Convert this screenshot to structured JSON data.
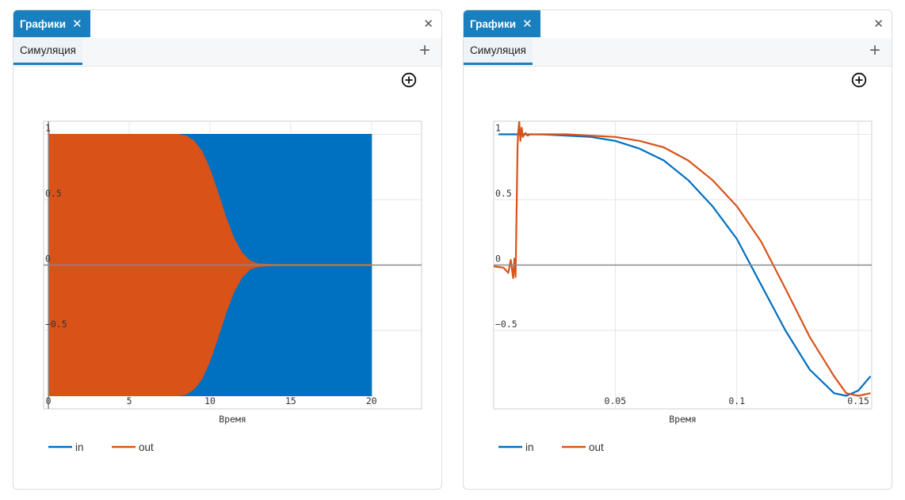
{
  "colors": {
    "accent": "#1a7fbf",
    "in": "#0070c0",
    "out": "#d95319",
    "grid": "#e6e6e6"
  },
  "panels": [
    {
      "tab_label": "Графики",
      "tab_close_icon": "close-icon",
      "panel_close_icon": "close-icon",
      "subtab_label": "Симуляция",
      "add_icon": "plus-icon",
      "zoom_icon": "circle-plus-icon"
    },
    {
      "tab_label": "Графики",
      "tab_close_icon": "close-icon",
      "panel_close_icon": "close-icon",
      "subtab_label": "Симуляция",
      "add_icon": "plus-icon",
      "zoom_icon": "circle-plus-icon"
    }
  ],
  "chart_data": [
    {
      "type": "line",
      "xlabel": "Время",
      "ylabel": "",
      "xlim": [
        -0.3,
        23.1
      ],
      "ylim": [
        -1.1,
        1.1
      ],
      "xticks": [
        0,
        5,
        10,
        15,
        20
      ],
      "xtick_labels": [
        "0",
        "5",
        "10",
        "15",
        "20"
      ],
      "yticks": [
        1,
        0.5,
        0,
        -0.5
      ],
      "ytick_labels": [
        "1",
        "0.5",
        "0",
        "−0.5"
      ],
      "grid": true,
      "legend_position": "bottom-left",
      "series": [
        {
          "name": "in",
          "description": "sinusoid of amplitude 1 filling the band from -1 to 1 over the whole time range",
          "x": [
            0,
            20
          ],
          "upper": [
            1,
            1
          ],
          "lower": [
            -1,
            -1
          ]
        },
        {
          "name": "out",
          "description": "oscillation amplitude, spike at start, then decay to zero",
          "x": [
            0,
            0.05,
            2,
            4,
            6,
            7,
            8,
            8.5,
            9,
            9.5,
            10,
            10.5,
            11,
            11.5,
            12,
            12.5,
            13,
            14,
            20
          ],
          "upper": [
            1.1,
            1.0,
            1.0,
            1.0,
            1.0,
            1.0,
            1.0,
            0.99,
            0.95,
            0.87,
            0.73,
            0.55,
            0.36,
            0.2,
            0.09,
            0.03,
            0.01,
            0.005,
            0.005
          ],
          "lower": [
            -0.95,
            -1.0,
            -1.0,
            -1.0,
            -1.0,
            -1.0,
            -1.0,
            -0.99,
            -0.95,
            -0.87,
            -0.73,
            -0.55,
            -0.36,
            -0.2,
            -0.09,
            -0.03,
            -0.01,
            -0.005,
            -0.005
          ]
        }
      ]
    },
    {
      "type": "line",
      "xlabel": "Время",
      "ylabel": "",
      "xlim": [
        0,
        0.1555
      ],
      "ylim": [
        -1.1,
        1.1
      ],
      "xticks": [
        0.05,
        0.1,
        0.15
      ],
      "xtick_labels": [
        "0.05",
        "0.1",
        "0.15"
      ],
      "yticks": [
        1,
        0.5,
        0,
        -0.5
      ],
      "ytick_labels": [
        "1",
        "0.5",
        "0",
        "−0.5"
      ],
      "grid": true,
      "legend_position": "bottom-left",
      "series": [
        {
          "name": "in",
          "x": [
            0.002,
            0.01,
            0.02,
            0.03,
            0.04,
            0.05,
            0.06,
            0.07,
            0.08,
            0.09,
            0.1,
            0.11,
            0.12,
            0.13,
            0.14,
            0.145,
            0.15,
            0.155
          ],
          "y": [
            1,
            1,
            0.999,
            0.99,
            0.98,
            0.95,
            0.89,
            0.8,
            0.65,
            0.45,
            0.2,
            -0.15,
            -0.5,
            -0.8,
            -0.98,
            -1.0,
            -0.96,
            -0.85
          ]
        },
        {
          "name": "out",
          "x": [
            0.0,
            0.004,
            0.006,
            0.007,
            0.008,
            0.0085,
            0.009,
            0.0095,
            0.0098,
            0.01,
            0.0105,
            0.011,
            0.0115,
            0.012,
            0.013,
            0.014,
            0.015,
            0.02,
            0.03,
            0.04,
            0.05,
            0.06,
            0.07,
            0.08,
            0.09,
            0.1,
            0.11,
            0.12,
            0.13,
            0.14,
            0.145,
            0.15,
            0.155
          ],
          "y": [
            -0.01,
            -0.02,
            -0.06,
            0.04,
            -0.1,
            0.05,
            -0.09,
            0.5,
            0.9,
            1.0,
            1.1,
            0.95,
            1.05,
            0.98,
            1.01,
            0.99,
            1.0,
            1.0,
            1.0,
            0.99,
            0.98,
            0.95,
            0.9,
            0.8,
            0.65,
            0.45,
            0.18,
            -0.18,
            -0.55,
            -0.85,
            -0.98,
            -1.0,
            -0.98
          ]
        }
      ]
    }
  ]
}
